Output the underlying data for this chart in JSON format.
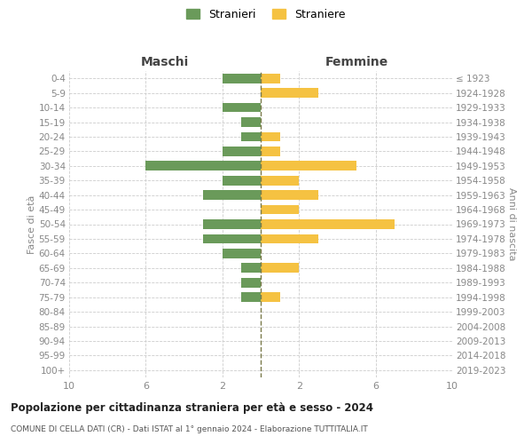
{
  "age_groups": [
    "0-4",
    "5-9",
    "10-14",
    "15-19",
    "20-24",
    "25-29",
    "30-34",
    "35-39",
    "40-44",
    "45-49",
    "50-54",
    "55-59",
    "60-64",
    "65-69",
    "70-74",
    "75-79",
    "80-84",
    "85-89",
    "90-94",
    "95-99",
    "100+"
  ],
  "birth_years": [
    "2019-2023",
    "2014-2018",
    "2009-2013",
    "2004-2008",
    "1999-2003",
    "1994-1998",
    "1989-1993",
    "1984-1988",
    "1979-1983",
    "1974-1978",
    "1969-1973",
    "1964-1968",
    "1959-1963",
    "1954-1958",
    "1949-1953",
    "1944-1948",
    "1939-1943",
    "1934-1938",
    "1929-1933",
    "1924-1928",
    "≤ 1923"
  ],
  "maschi": [
    2,
    0,
    2,
    1,
    1,
    2,
    6,
    2,
    3,
    0,
    3,
    3,
    2,
    1,
    1,
    1,
    0,
    0,
    0,
    0,
    0
  ],
  "femmine": [
    1,
    3,
    0,
    0,
    1,
    1,
    5,
    2,
    3,
    2,
    7,
    3,
    0,
    2,
    0,
    1,
    0,
    0,
    0,
    0,
    0
  ],
  "color_maschi": "#6a9a5a",
  "color_femmine": "#f5c242",
  "title": "Popolazione per cittadinanza straniera per età e sesso - 2024",
  "subtitle": "COMUNE DI CELLA DATI (CR) - Dati ISTAT al 1° gennaio 2024 - Elaborazione TUTTITALIA.IT",
  "xlabel_left": "Maschi",
  "xlabel_right": "Femmine",
  "ylabel_left": "Fasce di età",
  "ylabel_right": "Anni di nascita",
  "legend_maschi": "Stranieri",
  "legend_femmine": "Straniere",
  "xlim": 10,
  "background_color": "#ffffff",
  "grid_color": "#cccccc"
}
